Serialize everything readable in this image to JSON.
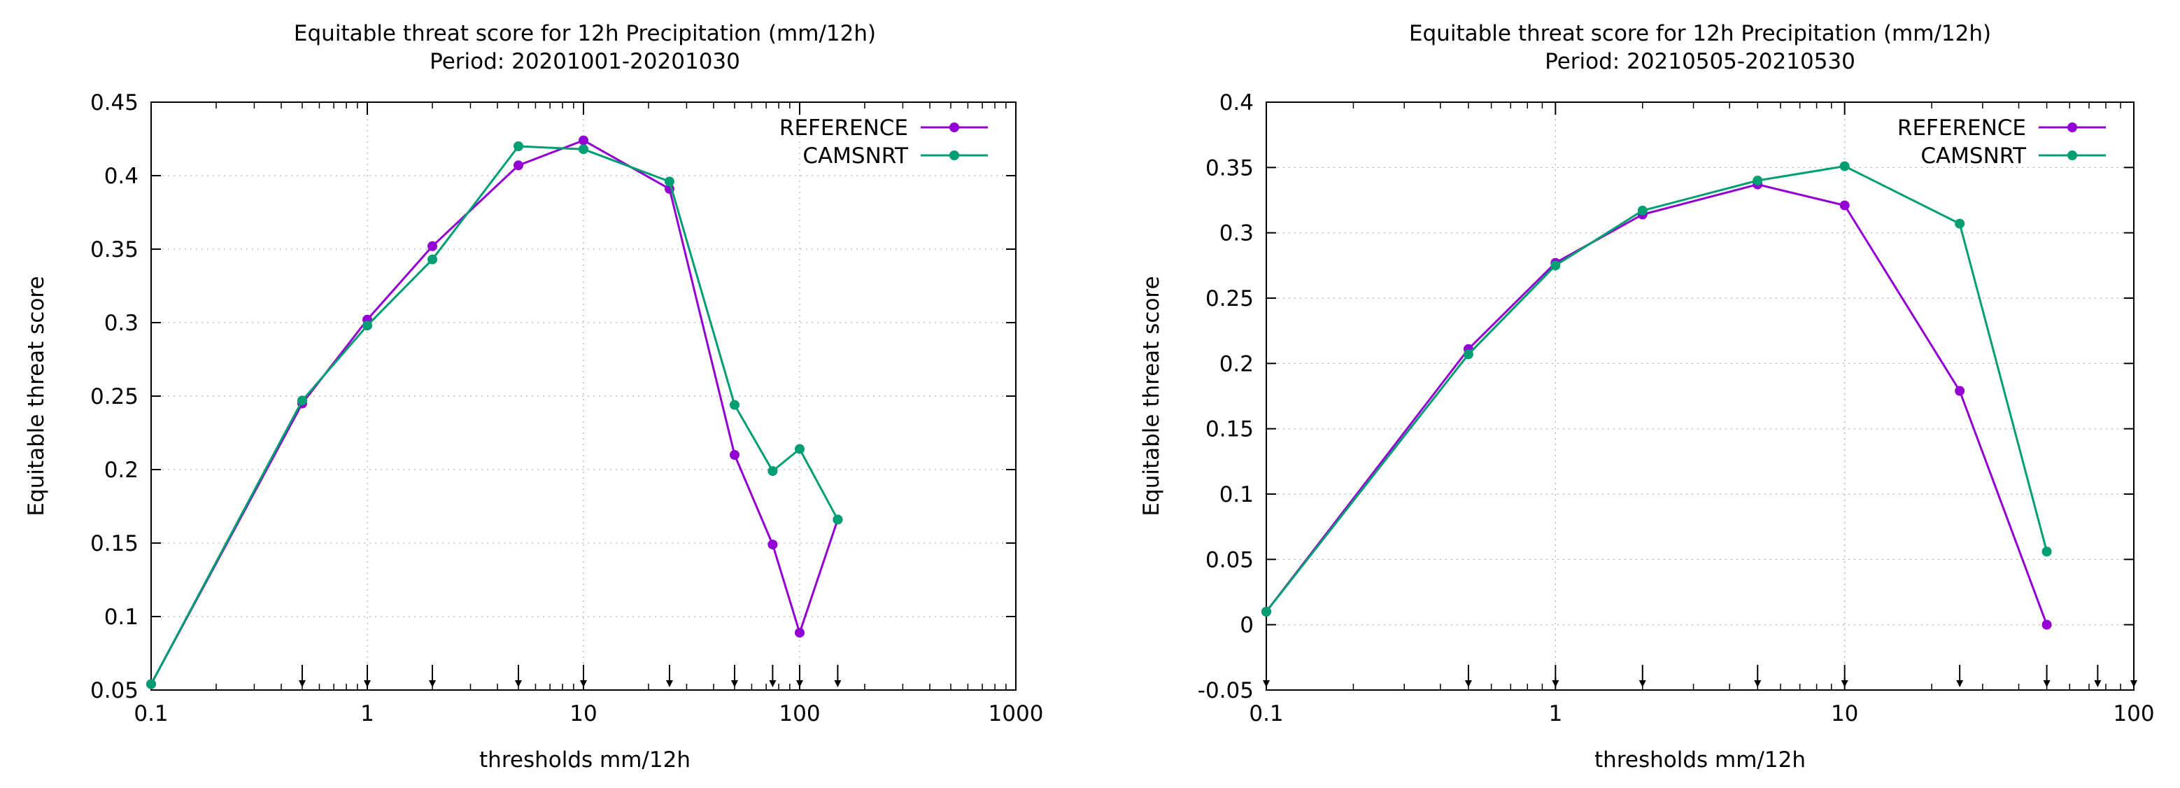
{
  "colors": {
    "reference": "#9400d3",
    "camsnrt": "#009e73",
    "grid": "#a0a0a0",
    "arrow": "#000000"
  },
  "chart_data": [
    {
      "type": "line",
      "title": "Equitable threat score  for 12h Precipitation (mm/12h)",
      "subtitle": "Period: 20201001-20201030",
      "xlabel": "thresholds mm/12h",
      "ylabel": "Equitable threat score",
      "xscale": "log",
      "xlim": [
        0.1,
        1000
      ],
      "ylim": [
        0.05,
        0.45
      ],
      "grid": true,
      "legend_position": "top-right",
      "xticks": [
        0.1,
        1,
        10,
        100,
        1000
      ],
      "xtick_labels": [
        "0.1",
        "1",
        "10",
        "100",
        "1000"
      ],
      "yticks": [
        0.05,
        0.1,
        0.15,
        0.2,
        0.25,
        0.3,
        0.35,
        0.4,
        0.45
      ],
      "ytick_labels": [
        "0.05",
        "0.1",
        "0.15",
        "0.2",
        "0.25",
        "0.3",
        "0.35",
        "0.4",
        "0.45"
      ],
      "threshold_markers": [
        0.1,
        0.5,
        1,
        2,
        5,
        10,
        25,
        50,
        75,
        100,
        150
      ],
      "series": [
        {
          "name": "REFERENCE",
          "color_key": "reference",
          "x": [
            0.1,
            0.5,
            1,
            2,
            5,
            10,
            25,
            50,
            75,
            100,
            150
          ],
          "y": [
            0.054,
            0.245,
            0.302,
            0.352,
            0.407,
            0.424,
            0.391,
            0.21,
            0.149,
            0.089,
            0.166
          ]
        },
        {
          "name": "CAMSNRT",
          "color_key": "camsnrt",
          "x": [
            0.1,
            0.5,
            1,
            2,
            5,
            10,
            25,
            50,
            75,
            100,
            150
          ],
          "y": [
            0.054,
            0.247,
            0.298,
            0.343,
            0.42,
            0.418,
            0.396,
            0.244,
            0.199,
            0.214,
            0.166
          ]
        }
      ]
    },
    {
      "type": "line",
      "title": "Equitable threat score  for 12h Precipitation (mm/12h)",
      "subtitle": "Period: 20210505-20210530",
      "xlabel": "thresholds mm/12h",
      "ylabel": "Equitable threat score",
      "xscale": "log",
      "xlim": [
        0.1,
        100
      ],
      "ylim": [
        -0.05,
        0.4
      ],
      "grid": true,
      "legend_position": "top-right",
      "xticks": [
        0.1,
        1,
        10,
        100
      ],
      "xtick_labels": [
        "0.1",
        "1",
        "10",
        "100"
      ],
      "yticks": [
        -0.05,
        0,
        0.05,
        0.1,
        0.15,
        0.2,
        0.25,
        0.3,
        0.35,
        0.4
      ],
      "ytick_labels": [
        "-0.05",
        "0",
        "0.05",
        "0.1",
        "0.15",
        "0.2",
        "0.25",
        "0.3",
        "0.35",
        "0.4"
      ],
      "threshold_markers": [
        0.1,
        0.5,
        1,
        2,
        5,
        10,
        25,
        50,
        75,
        100
      ],
      "series": [
        {
          "name": "REFERENCE",
          "color_key": "reference",
          "x": [
            0.1,
            0.5,
            1,
            2,
            5,
            10,
            25,
            50
          ],
          "y": [
            0.01,
            0.211,
            0.277,
            0.314,
            0.337,
            0.321,
            0.179,
            0.0
          ]
        },
        {
          "name": "CAMSNRT",
          "color_key": "camsnrt",
          "x": [
            0.1,
            0.5,
            1,
            2,
            5,
            10,
            25,
            50
          ],
          "y": [
            0.01,
            0.207,
            0.275,
            0.317,
            0.34,
            0.351,
            0.307,
            0.056
          ]
        }
      ]
    }
  ]
}
